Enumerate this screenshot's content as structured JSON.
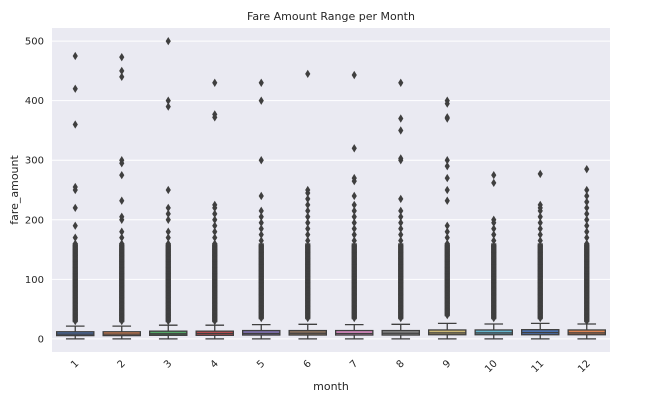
{
  "chart_data": {
    "type": "box",
    "title": "Fare Amount Range per Month",
    "xlabel": "month",
    "ylabel": "fare_amount",
    "categories": [
      "1",
      "2",
      "3",
      "4",
      "5",
      "6",
      "7",
      "8",
      "9",
      "10",
      "11",
      "12"
    ],
    "yticks": [
      0,
      100,
      200,
      300,
      400,
      500
    ],
    "ylim": [
      -22,
      522
    ],
    "grid": true,
    "colors": [
      "#4c72b0",
      "#dd8452",
      "#55a868",
      "#c44e52",
      "#8172b3",
      "#937860",
      "#da8bc3",
      "#8c8c8c",
      "#ccb974",
      "#64b5cd",
      "#4c72b0",
      "#dd8452"
    ],
    "boxes": [
      {
        "q1": 5.5,
        "median": 8.0,
        "q3": 12.0,
        "whisker_low": 0,
        "whisker_high": 21.5,
        "outliers": [
          475,
          420,
          360,
          255,
          250,
          220,
          190,
          170,
          160,
          150,
          140,
          130,
          120,
          110,
          100,
          90,
          80,
          70,
          60,
          50,
          40,
          30
        ]
      },
      {
        "q1": 5.5,
        "median": 8.0,
        "q3": 12.0,
        "whisker_low": 0,
        "whisker_high": 21.5,
        "outliers": [
          473,
          450,
          440,
          300,
          295,
          275,
          232,
          205,
          200,
          180,
          170,
          160,
          150,
          140,
          130,
          120,
          110,
          100,
          90,
          80,
          70,
          60,
          50,
          40,
          30
        ]
      },
      {
        "q1": 6.0,
        "median": 8.5,
        "q3": 13.0,
        "whisker_low": 0,
        "whisker_high": 23.0,
        "outliers": [
          500,
          400,
          390,
          250,
          220,
          210,
          200,
          180,
          170,
          160,
          150,
          140,
          130,
          120,
          110,
          100,
          90,
          80,
          70,
          60,
          50,
          40,
          30
        ]
      },
      {
        "q1": 6.0,
        "median": 9.0,
        "q3": 13.0,
        "whisker_low": 0,
        "whisker_high": 23.0,
        "outliers": [
          430,
          377,
          372,
          225,
          220,
          210,
          200,
          190,
          180,
          170,
          160,
          150,
          140,
          130,
          120,
          110,
          100,
          90,
          80,
          70,
          60,
          50,
          40,
          30
        ]
      },
      {
        "q1": 6.5,
        "median": 9.0,
        "q3": 14.0,
        "whisker_low": 0,
        "whisker_high": 24.0,
        "outliers": [
          430,
          400,
          300,
          240,
          215,
          205,
          195,
          185,
          175,
          165,
          155,
          145,
          135,
          125,
          115,
          105,
          95,
          85,
          75,
          65,
          55,
          45,
          35
        ]
      },
      {
        "q1": 6.5,
        "median": 9.5,
        "q3": 14.0,
        "whisker_low": 0,
        "whisker_high": 24.5,
        "outliers": [
          445,
          250,
          245,
          235,
          225,
          215,
          205,
          195,
          185,
          175,
          165,
          155,
          145,
          135,
          125,
          115,
          105,
          95,
          85,
          75,
          65,
          55,
          45,
          35
        ]
      },
      {
        "q1": 6.5,
        "median": 9.0,
        "q3": 14.0,
        "whisker_low": 0,
        "whisker_high": 24.0,
        "outliers": [
          443,
          320,
          270,
          265,
          240,
          225,
          215,
          205,
          195,
          185,
          175,
          165,
          155,
          145,
          135,
          125,
          115,
          105,
          95,
          85,
          75,
          65,
          55,
          45,
          35
        ]
      },
      {
        "q1": 6.5,
        "median": 9.5,
        "q3": 14.0,
        "whisker_low": 0,
        "whisker_high": 24.5,
        "outliers": [
          430,
          370,
          350,
          303,
          300,
          235,
          215,
          205,
          195,
          185,
          175,
          165,
          155,
          145,
          135,
          125,
          115,
          105,
          95,
          85,
          75,
          65,
          55,
          45,
          35
        ]
      },
      {
        "q1": 7.0,
        "median": 10.0,
        "q3": 15.0,
        "whisker_low": 0,
        "whisker_high": 26.0,
        "outliers": [
          400,
          395,
          372,
          370,
          300,
          290,
          270,
          250,
          232,
          190,
          180,
          170,
          160,
          150,
          140,
          130,
          120,
          110,
          100,
          90,
          80,
          70,
          60,
          50,
          40
        ]
      },
      {
        "q1": 7.0,
        "median": 10.0,
        "q3": 15.0,
        "whisker_low": 0,
        "whisker_high": 25.0,
        "outliers": [
          275,
          262,
          200,
          195,
          185,
          175,
          165,
          155,
          145,
          135,
          125,
          115,
          105,
          95,
          85,
          75,
          65,
          55,
          45,
          35
        ]
      },
      {
        "q1": 7.0,
        "median": 10.5,
        "q3": 15.5,
        "whisker_low": 0,
        "whisker_high": 26.0,
        "outliers": [
          277,
          225,
          220,
          215,
          205,
          195,
          185,
          175,
          165,
          155,
          145,
          135,
          125,
          115,
          105,
          95,
          85,
          75,
          65,
          55,
          45,
          35
        ]
      },
      {
        "q1": 7.0,
        "median": 10.0,
        "q3": 15.0,
        "whisker_low": 0,
        "whisker_high": 25.0,
        "outliers": [
          285,
          250,
          240,
          230,
          220,
          210,
          200,
          190,
          180,
          170,
          160,
          150,
          140,
          130,
          120,
          110,
          100,
          90,
          80,
          70,
          60,
          50,
          40,
          30
        ]
      }
    ]
  }
}
